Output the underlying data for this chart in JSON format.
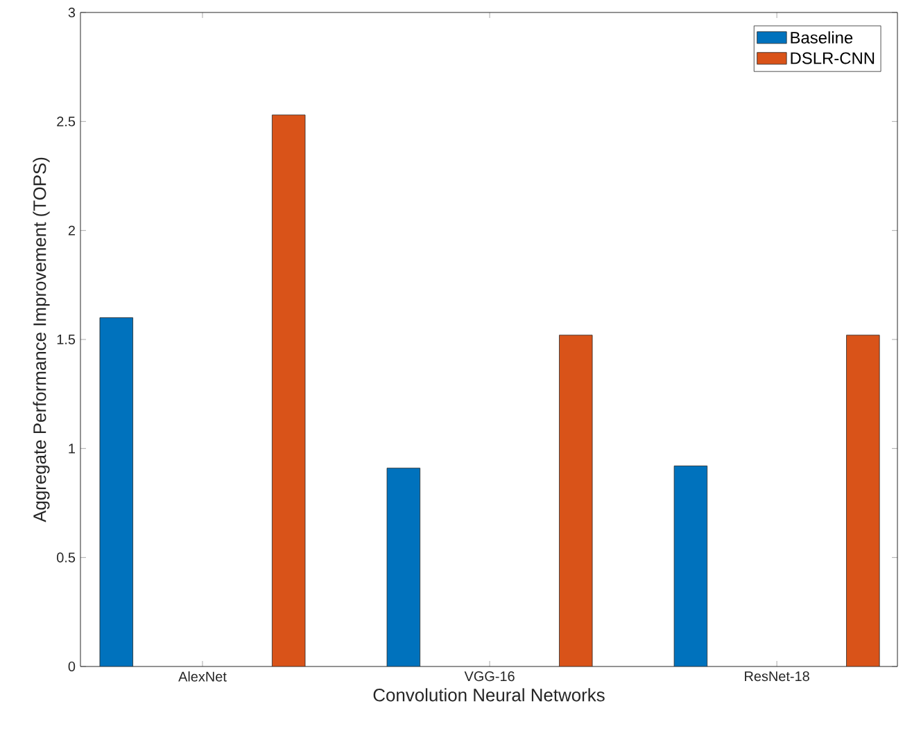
{
  "chart_data": {
    "type": "bar",
    "xlabel": "Convolution Neural Networks",
    "ylabel": "Aggregate Performance Improvement (TOPS)",
    "categories": [
      "AlexNet",
      "VGG-16",
      "ResNet-18"
    ],
    "series": [
      {
        "name": "Baseline",
        "color": "#0072bd",
        "values": [
          1.6,
          0.91,
          0.92
        ]
      },
      {
        "name": "DSLR-CNN",
        "color": "#d95319",
        "values": [
          2.53,
          1.52,
          1.52
        ]
      }
    ],
    "ylim": [
      0,
      3
    ],
    "yticks": [
      0,
      0.5,
      1,
      1.5,
      2,
      2.5,
      3
    ],
    "legend": "top right"
  }
}
